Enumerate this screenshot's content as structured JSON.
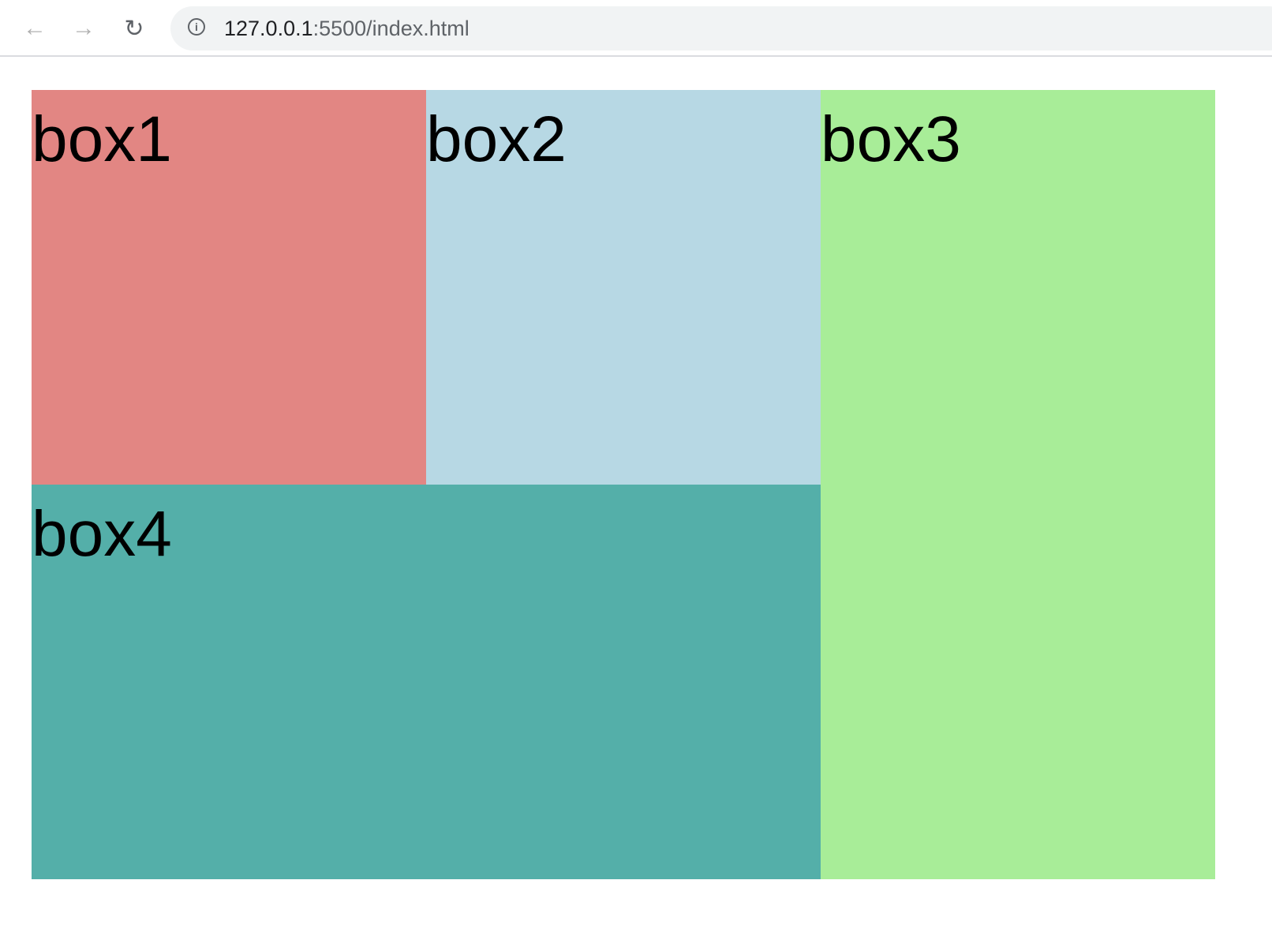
{
  "browser": {
    "url_host": "127.0.0.1",
    "url_rest": ":5500/index.html",
    "icons": {
      "back": "arrow-left-icon",
      "forward": "arrow-right-icon",
      "reload": "reload-icon",
      "info": "info-icon"
    }
  },
  "boxes": [
    {
      "label": "box1",
      "color": "#e28683"
    },
    {
      "label": "box2",
      "color": "#b7d8e4"
    },
    {
      "label": "box3",
      "color": "#a8ed98"
    },
    {
      "label": "box4",
      "color": "#54afa9"
    }
  ]
}
